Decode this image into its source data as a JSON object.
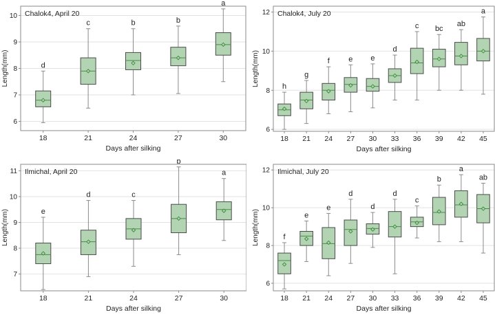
{
  "colors": {
    "box_fill": "#b2d4b2",
    "box_stroke": "#4a4a4a",
    "whisker": "#8a8a8a",
    "median": "#4a8a4a",
    "mean_marker": "#3a8a3a",
    "grid": "#e2e2e2",
    "frame": "#8a8a8a",
    "text": "#222222"
  },
  "chart_data": [
    {
      "type": "box",
      "title": "Chalok4, April 20",
      "xlabel": "Days after silking",
      "ylabel": "Length(mm)",
      "ylim": [
        5.65,
        10.35
      ],
      "yticks": [
        6,
        7,
        8,
        9,
        10
      ],
      "ytick_labels": [
        "6",
        "7",
        "8",
        "9",
        "10"
      ],
      "grid": "horizontal",
      "categories": [
        "18",
        "21",
        "24",
        "27",
        "30"
      ],
      "boxes": [
        {
          "min": 5.95,
          "q1": 6.55,
          "median": 6.8,
          "q3": 7.15,
          "max": 7.9,
          "mean": 6.8,
          "letter": "d"
        },
        {
          "min": 6.5,
          "q1": 7.4,
          "median": 7.9,
          "q3": 8.4,
          "max": 9.5,
          "mean": 7.9,
          "letter": "c"
        },
        {
          "min": 7.0,
          "q1": 7.95,
          "median": 8.3,
          "q3": 8.6,
          "max": 9.5,
          "mean": 8.2,
          "letter": "b"
        },
        {
          "min": 7.05,
          "q1": 8.1,
          "median": 8.4,
          "q3": 8.8,
          "max": 9.6,
          "mean": 8.4,
          "letter": "b"
        },
        {
          "min": 7.5,
          "q1": 8.5,
          "median": 8.9,
          "q3": 9.35,
          "max": 10.25,
          "mean": 8.9,
          "letter": "a"
        }
      ]
    },
    {
      "type": "box",
      "title": "Chalok4, July 20",
      "xlabel": "Days after silking",
      "ylabel": "Length(mm)",
      "ylim": [
        5.9,
        12.3
      ],
      "yticks": [
        6,
        8,
        10,
        12
      ],
      "ytick_labels": [
        "6",
        "8",
        "10",
        "12"
      ],
      "grid": "horizontal",
      "categories": [
        "18",
        "21",
        "24",
        "27",
        "30",
        "33",
        "36",
        "39",
        "42",
        "45"
      ],
      "boxes": [
        {
          "min": 6.0,
          "q1": 6.7,
          "median": 7.0,
          "q3": 7.3,
          "max": 7.9,
          "mean": 7.05,
          "letter": "h"
        },
        {
          "min": 6.3,
          "q1": 7.05,
          "median": 7.5,
          "q3": 7.9,
          "max": 8.5,
          "mean": 7.45,
          "letter": "g"
        },
        {
          "min": 6.8,
          "q1": 7.5,
          "median": 8.0,
          "q3": 8.35,
          "max": 9.2,
          "mean": 7.95,
          "letter": "f"
        },
        {
          "min": 6.9,
          "q1": 7.9,
          "median": 8.3,
          "q3": 8.65,
          "max": 9.3,
          "mean": 8.25,
          "letter": "e"
        },
        {
          "min": 7.1,
          "q1": 7.95,
          "median": 8.2,
          "q3": 8.6,
          "max": 9.35,
          "mean": 8.2,
          "letter": "e"
        },
        {
          "min": 7.5,
          "q1": 8.4,
          "median": 8.75,
          "q3": 9.1,
          "max": 9.8,
          "mean": 8.75,
          "letter": "d"
        },
        {
          "min": 7.5,
          "q1": 8.85,
          "median": 9.4,
          "q3": 10.15,
          "max": 11.0,
          "mean": 9.45,
          "letter": "c"
        },
        {
          "min": 8.0,
          "q1": 9.2,
          "median": 9.6,
          "q3": 10.1,
          "max": 10.85,
          "mean": 9.6,
          "letter": "bc"
        },
        {
          "min": 8.0,
          "q1": 9.3,
          "median": 9.75,
          "q3": 10.45,
          "max": 11.1,
          "mean": 9.75,
          "letter": "ab"
        },
        {
          "min": 7.8,
          "q1": 9.5,
          "median": 10.0,
          "q3": 10.65,
          "max": 11.75,
          "mean": 10.0,
          "letter": "a"
        }
      ]
    },
    {
      "type": "box",
      "title": "Ilmichal, April 20",
      "xlabel": "Days after silking",
      "ylabel": "Length(mm)",
      "ylim": [
        6.35,
        11.25
      ],
      "yticks": [
        7,
        8,
        9,
        10,
        11
      ],
      "ytick_labels": [
        "7",
        "8",
        "9",
        "10",
        "11"
      ],
      "grid": "horizontal",
      "categories": [
        "18",
        "21",
        "24",
        "27",
        "30"
      ],
      "boxes": [
        {
          "min": 6.4,
          "q1": 7.4,
          "median": 7.75,
          "q3": 8.2,
          "max": 9.2,
          "mean": 7.8,
          "letter": "e"
        },
        {
          "min": 6.9,
          "q1": 7.75,
          "median": 8.25,
          "q3": 8.7,
          "max": 9.85,
          "mean": 8.25,
          "letter": "d"
        },
        {
          "min": 7.3,
          "q1": 8.35,
          "median": 8.75,
          "q3": 9.15,
          "max": 9.85,
          "mean": 8.7,
          "letter": "c"
        },
        {
          "min": 7.75,
          "q1": 8.6,
          "median": 9.15,
          "q3": 9.7,
          "max": 11.15,
          "mean": 9.15,
          "letter": "b"
        },
        {
          "min": 8.3,
          "q1": 9.1,
          "median": 9.5,
          "q3": 9.8,
          "max": 10.7,
          "mean": 9.45,
          "letter": "a"
        }
      ]
    },
    {
      "type": "box",
      "title": "Ilmichal, July 20",
      "xlabel": "Days after silking",
      "ylabel": "Length(mm)",
      "ylim": [
        5.6,
        12.3
      ],
      "yticks": [
        6,
        8,
        10,
        12
      ],
      "ytick_labels": [
        "6",
        "8",
        "10",
        "12"
      ],
      "grid": "horizontal",
      "categories": [
        "18",
        "21",
        "24",
        "27",
        "30",
        "33",
        "36",
        "39",
        "42",
        "45"
      ],
      "boxes": [
        {
          "min": 5.7,
          "q1": 6.5,
          "median": 7.2,
          "q3": 7.6,
          "max": 8.15,
          "mean": 7.0,
          "letter": "f"
        },
        {
          "min": 7.15,
          "q1": 8.0,
          "median": 8.5,
          "q3": 8.75,
          "max": 9.3,
          "mean": 8.35,
          "letter": "e"
        },
        {
          "min": 6.4,
          "q1": 7.3,
          "median": 8.1,
          "q3": 8.95,
          "max": 9.7,
          "mean": 8.15,
          "letter": "e"
        },
        {
          "min": 7.05,
          "q1": 8.0,
          "median": 8.85,
          "q3": 9.35,
          "max": 10.45,
          "mean": 8.75,
          "letter": "d"
        },
        {
          "min": 7.9,
          "q1": 8.6,
          "median": 8.9,
          "q3": 9.15,
          "max": 9.75,
          "mean": 8.85,
          "letter": "d"
        },
        {
          "min": 6.5,
          "q1": 8.45,
          "median": 9.0,
          "q3": 9.8,
          "max": 10.45,
          "mean": 9.0,
          "letter": "d"
        },
        {
          "min": 8.4,
          "q1": 9.0,
          "median": 9.25,
          "q3": 9.5,
          "max": 10.1,
          "mean": 9.2,
          "letter": "c"
        },
        {
          "min": 8.2,
          "q1": 9.1,
          "median": 9.75,
          "q3": 10.55,
          "max": 11.2,
          "mean": 9.8,
          "letter": "b"
        },
        {
          "min": 8.2,
          "q1": 9.5,
          "median": 10.15,
          "q3": 10.9,
          "max": 11.75,
          "mean": 10.2,
          "letter": "a"
        },
        {
          "min": 7.6,
          "q1": 9.2,
          "median": 9.95,
          "q3": 10.7,
          "max": 11.3,
          "mean": 9.95,
          "letter": "ab"
        }
      ]
    }
  ]
}
